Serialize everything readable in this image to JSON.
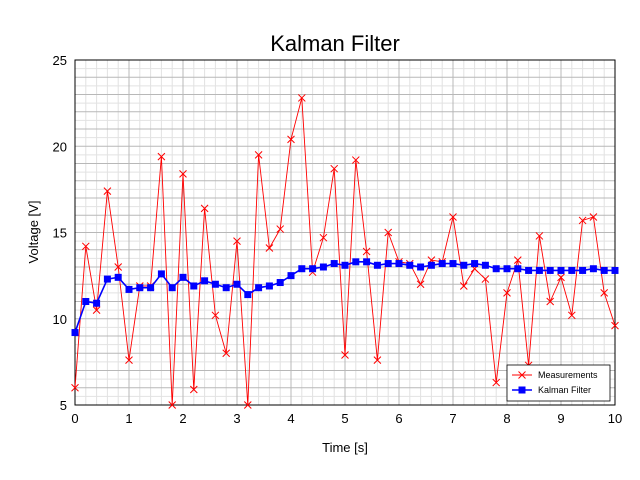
{
  "chart_data": {
    "type": "line",
    "title": "Kalman Filter",
    "xlabel": "Time [s]",
    "ylabel": "Voltage [V]",
    "xlim": [
      0,
      10
    ],
    "ylim": [
      5,
      25
    ],
    "x_ticks": [
      "0",
      "1",
      "2",
      "3",
      "4",
      "5",
      "6",
      "7",
      "8",
      "9",
      "10"
    ],
    "y_ticks": [
      "5",
      "10",
      "15",
      "20",
      "25"
    ],
    "grid": true,
    "legend_position": "bottom-right",
    "x": [
      0,
      0.2,
      0.4,
      0.6,
      0.8,
      1.0,
      1.2,
      1.4,
      1.6,
      1.8,
      2.0,
      2.2,
      2.4,
      2.6,
      2.8,
      3.0,
      3.2,
      3.4,
      3.6,
      3.8,
      4.0,
      4.2,
      4.4,
      4.6,
      4.8,
      5.0,
      5.2,
      5.4,
      5.6,
      5.8,
      6.0,
      6.2,
      6.4,
      6.6,
      6.8,
      7.0,
      7.2,
      7.4,
      7.6,
      7.8,
      8.0,
      8.2,
      8.4,
      8.6,
      8.8,
      9.0,
      9.2,
      9.4,
      9.6,
      9.8,
      10.0
    ],
    "series": [
      {
        "name": "Measurements",
        "color": "#ff0000",
        "marker": "x",
        "values": [
          6.0,
          14.2,
          10.5,
          17.4,
          13.0,
          7.6,
          11.9,
          11.9,
          19.4,
          5.0,
          18.4,
          5.9,
          16.4,
          10.2,
          8.0,
          14.5,
          5.0,
          19.5,
          14.1,
          15.2,
          20.4,
          22.8,
          12.7,
          14.7,
          18.7,
          7.9,
          19.2,
          13.9,
          7.6,
          15.0,
          13.3,
          13.2,
          12.0,
          13.4,
          13.3,
          15.9,
          11.9,
          12.9,
          12.3,
          6.3,
          11.5,
          13.4,
          7.3,
          14.8,
          11.0,
          12.4,
          10.2,
          15.7,
          15.9,
          11.5,
          9.6
        ]
      },
      {
        "name": "Kalman Filter",
        "color": "#0000ff",
        "marker": "square",
        "values": [
          9.2,
          11.0,
          10.9,
          12.3,
          12.4,
          11.7,
          11.8,
          11.8,
          12.6,
          11.8,
          12.4,
          11.9,
          12.2,
          12.0,
          11.8,
          12.0,
          11.4,
          11.8,
          11.9,
          12.1,
          12.5,
          12.9,
          12.9,
          13.0,
          13.2,
          13.1,
          13.3,
          13.3,
          13.1,
          13.2,
          13.2,
          13.1,
          13.0,
          13.1,
          13.2,
          13.2,
          13.1,
          13.2,
          13.1,
          12.9,
          12.9,
          12.9,
          12.8,
          12.8,
          12.8,
          12.8,
          12.8,
          12.8,
          12.9,
          12.8,
          12.8
        ]
      }
    ]
  }
}
